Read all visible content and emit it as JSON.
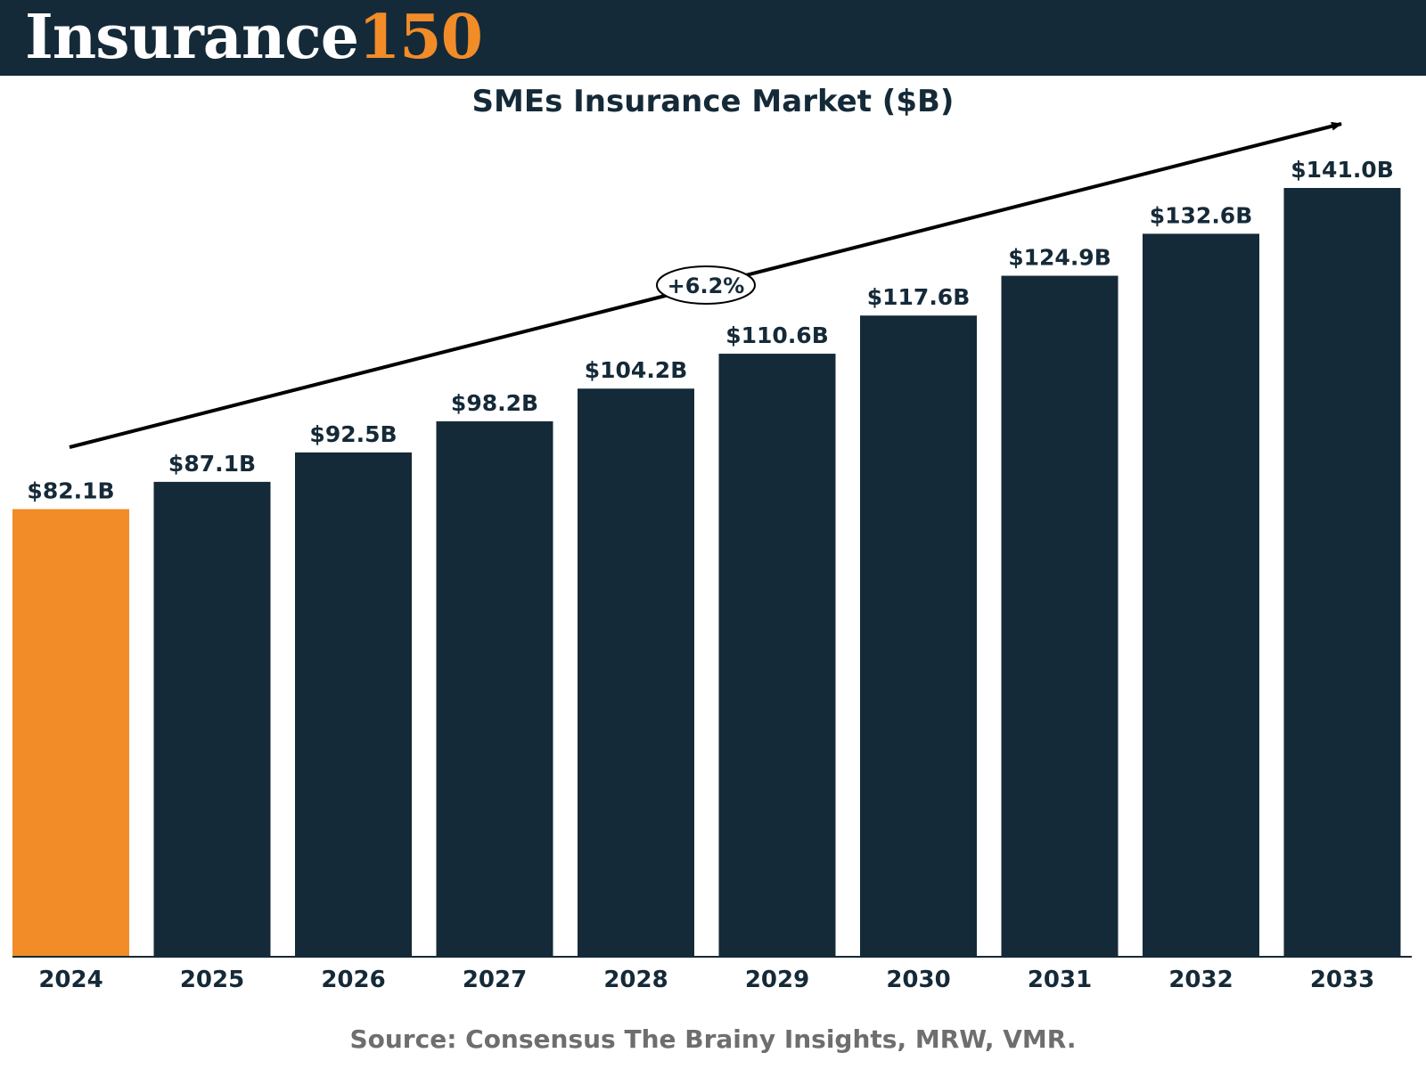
{
  "brand": {
    "name": "Insurance",
    "number": "150"
  },
  "colors": {
    "header_bg": "#152a38",
    "bar": "#152a38",
    "highlight": "#f28c28",
    "source_text": "#6e6e6e"
  },
  "chart_data": {
    "type": "bar",
    "title": "SMEs Insurance Market ($B)",
    "categories": [
      "2024",
      "2025",
      "2026",
      "2027",
      "2028",
      "2029",
      "2030",
      "2031",
      "2032",
      "2033"
    ],
    "values": [
      82.1,
      87.1,
      92.5,
      98.2,
      104.2,
      110.6,
      117.6,
      124.9,
      132.6,
      141.0
    ],
    "labels": [
      "$82.1B",
      "$87.1B",
      "$92.5B",
      "$98.2B",
      "$104.2B",
      "$110.6B",
      "$117.6B",
      "$124.9B",
      "$132.6B",
      "$141.0B"
    ],
    "highlight_index": 0,
    "xlabel": "",
    "ylabel": "",
    "ylim": [
      0,
      141
    ],
    "grid": false,
    "annotation": {
      "text": "+6.2%",
      "meaning": "CAGR trend arrow"
    }
  },
  "source": "Source: Consensus The Brainy Insights, MRW, VMR."
}
